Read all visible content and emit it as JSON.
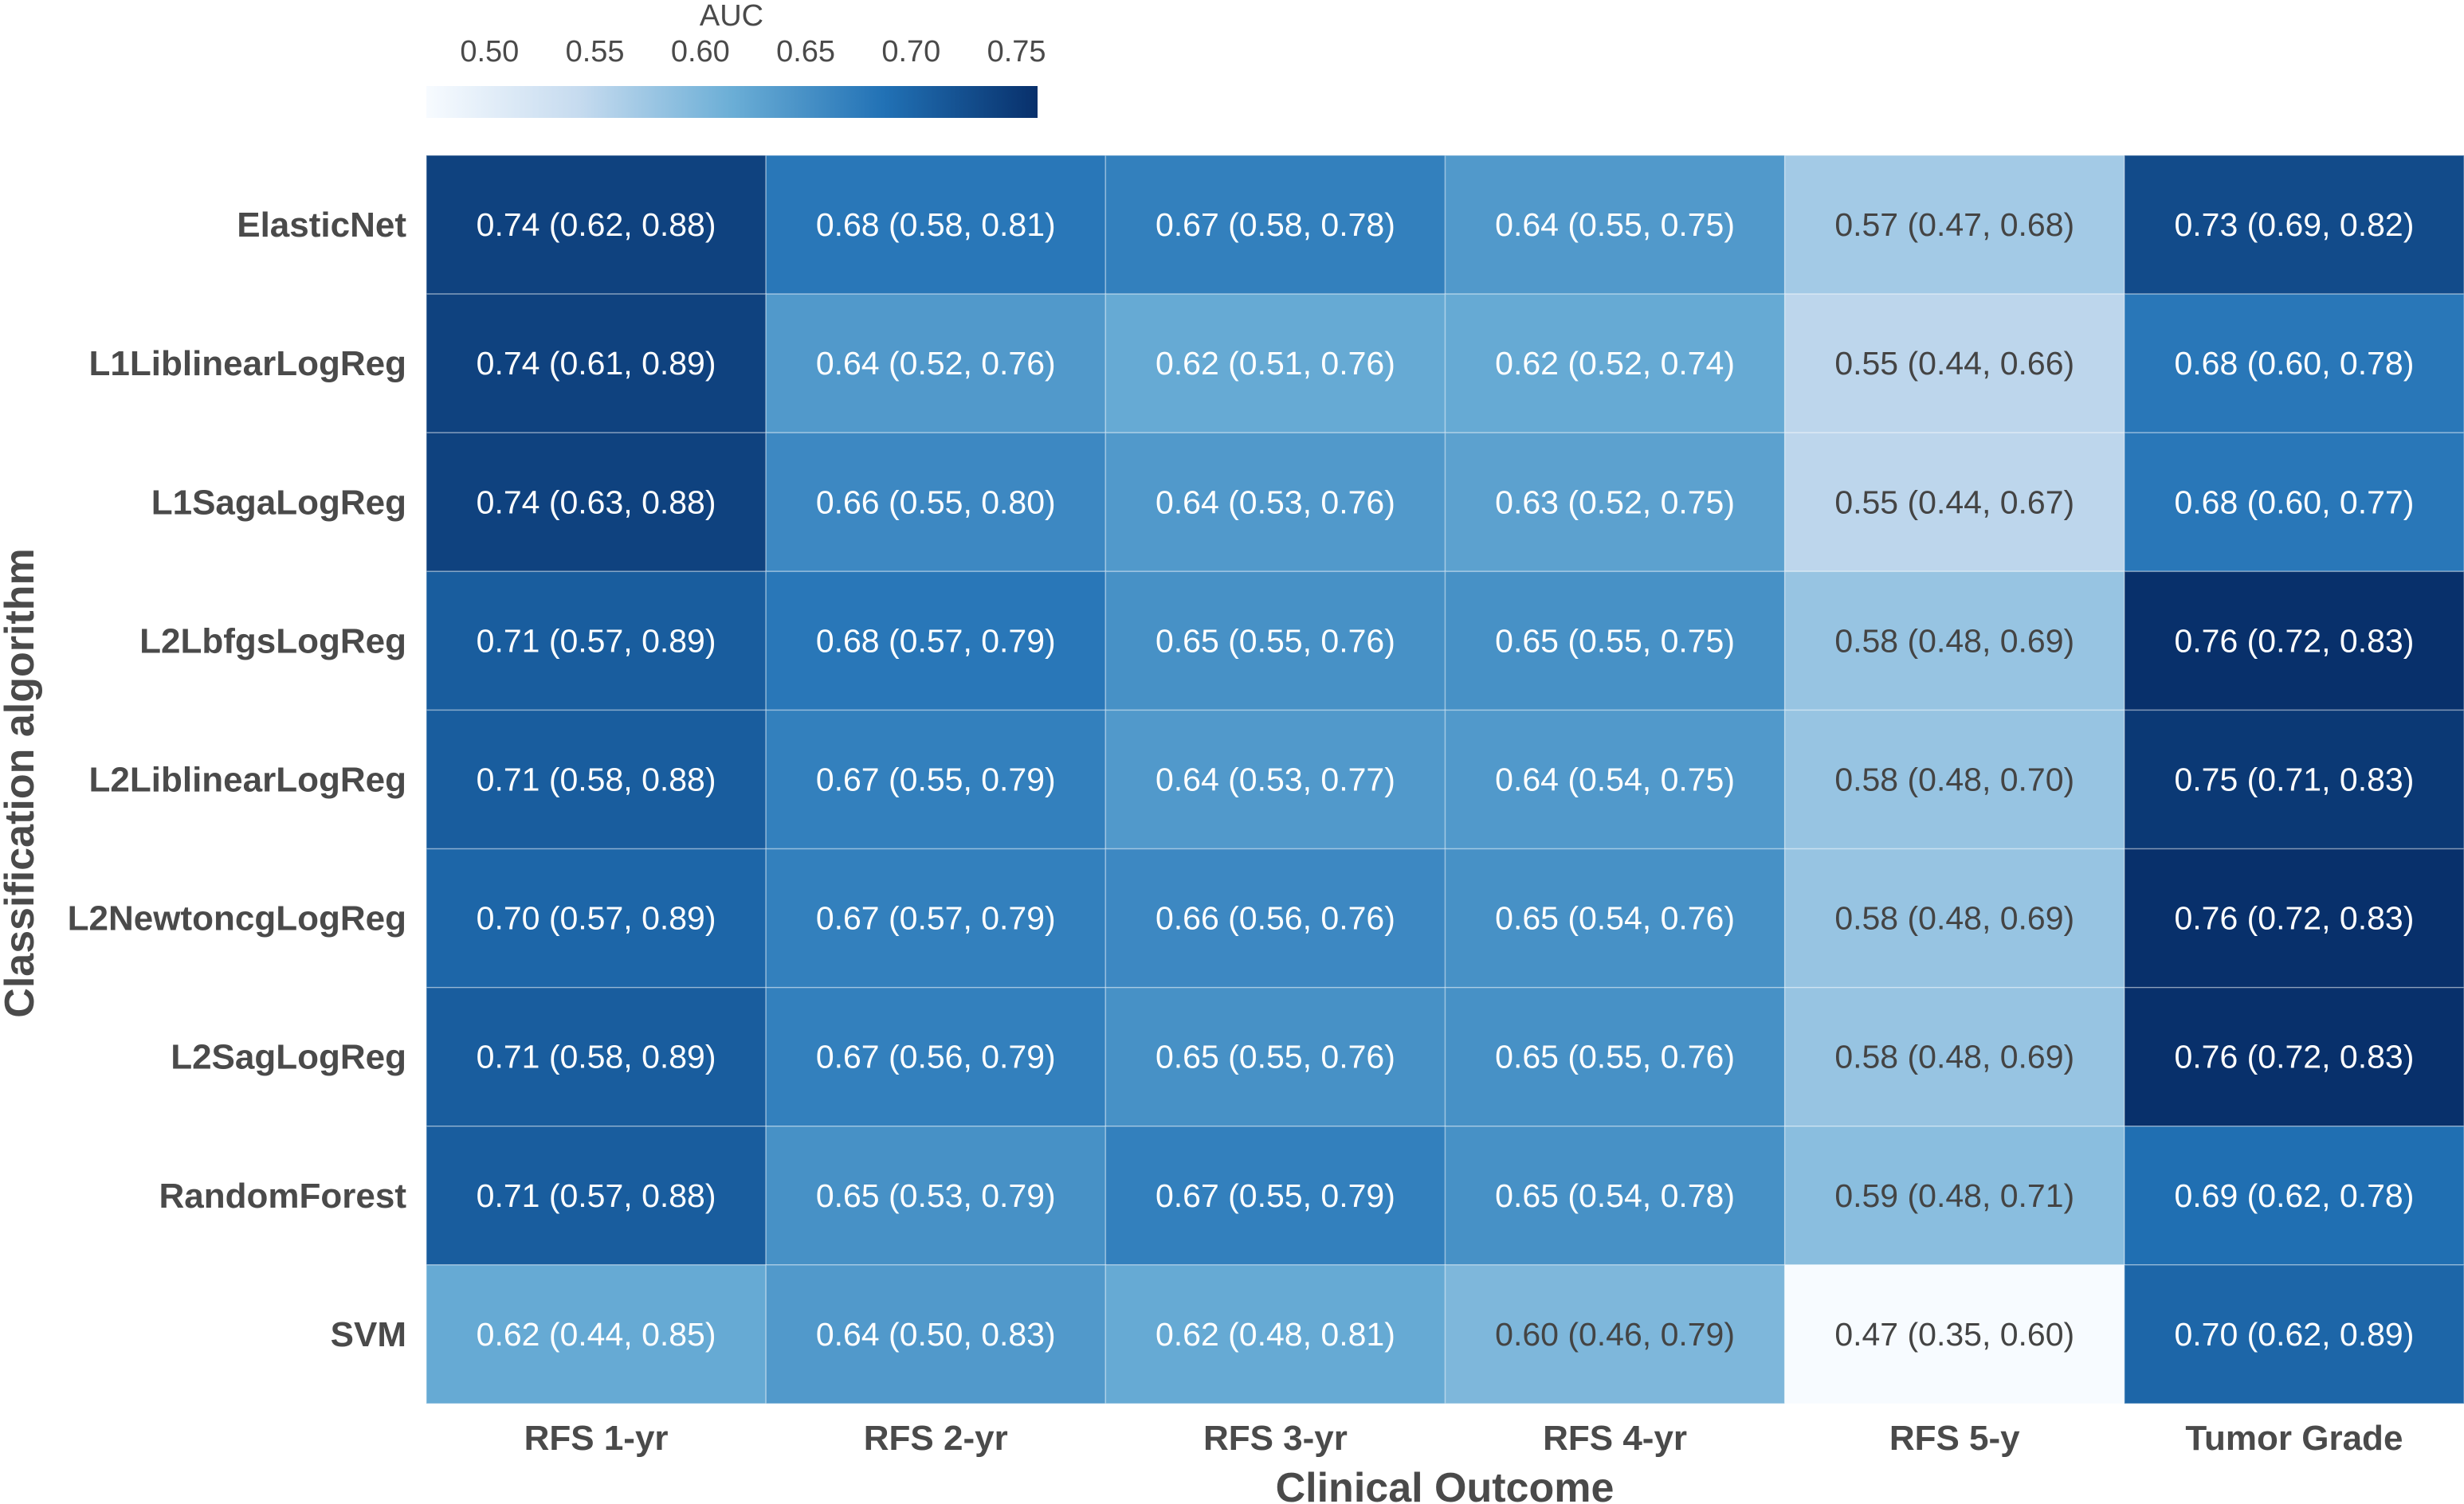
{
  "chart_data": {
    "type": "heatmap",
    "xlabel": "Clinical Outcome",
    "ylabel": "Classification algorithm",
    "colorbar": {
      "label": "AUC",
      "ticks": [
        "0.50",
        "0.55",
        "0.60",
        "0.65",
        "0.70",
        "0.75"
      ],
      "range": [
        0.47,
        0.76
      ],
      "colors": [
        "#f7fbff",
        "#c6dbef",
        "#6baed6",
        "#2171b5",
        "#08306b"
      ]
    },
    "columns": [
      "RFS 1-yr",
      "RFS 2-yr",
      "RFS 3-yr",
      "RFS 4-yr",
      "RFS 5-y",
      "Tumor Grade"
    ],
    "rows": [
      "ElasticNet",
      "L1LiblinearLogReg",
      "L1SagaLogReg",
      "L2LbfgsLogReg",
      "L2LiblinearLogReg",
      "L2NewtoncgLogReg",
      "L2SagLogReg",
      "RandomForest",
      "SVM"
    ],
    "values": [
      [
        0.74,
        0.68,
        0.67,
        0.64,
        0.57,
        0.73
      ],
      [
        0.74,
        0.64,
        0.62,
        0.62,
        0.55,
        0.68
      ],
      [
        0.74,
        0.66,
        0.64,
        0.63,
        0.55,
        0.68
      ],
      [
        0.71,
        0.68,
        0.65,
        0.65,
        0.58,
        0.76
      ],
      [
        0.71,
        0.67,
        0.64,
        0.64,
        0.58,
        0.75
      ],
      [
        0.7,
        0.67,
        0.66,
        0.65,
        0.58,
        0.76
      ],
      [
        0.71,
        0.67,
        0.65,
        0.65,
        0.58,
        0.76
      ],
      [
        0.71,
        0.65,
        0.67,
        0.65,
        0.59,
        0.69
      ],
      [
        0.62,
        0.64,
        0.62,
        0.6,
        0.47,
        0.7
      ]
    ],
    "labels": [
      [
        "0.74 (0.62, 0.88)",
        "0.68 (0.58, 0.81)",
        "0.67 (0.58, 0.78)",
        "0.64 (0.55, 0.75)",
        "0.57 (0.47, 0.68)",
        "0.73 (0.69, 0.82)"
      ],
      [
        "0.74 (0.61, 0.89)",
        "0.64 (0.52, 0.76)",
        "0.62 (0.51, 0.76)",
        "0.62 (0.52, 0.74)",
        "0.55 (0.44, 0.66)",
        "0.68 (0.60, 0.78)"
      ],
      [
        "0.74 (0.63, 0.88)",
        "0.66 (0.55, 0.80)",
        "0.64 (0.53, 0.76)",
        "0.63 (0.52, 0.75)",
        "0.55 (0.44, 0.67)",
        "0.68 (0.60, 0.77)"
      ],
      [
        "0.71 (0.57, 0.89)",
        "0.68 (0.57, 0.79)",
        "0.65 (0.55, 0.76)",
        "0.65 (0.55, 0.75)",
        "0.58 (0.48, 0.69)",
        "0.76 (0.72, 0.83)"
      ],
      [
        "0.71 (0.58, 0.88)",
        "0.67 (0.55, 0.79)",
        "0.64 (0.53, 0.77)",
        "0.64 (0.54, 0.75)",
        "0.58 (0.48, 0.70)",
        "0.75 (0.71, 0.83)"
      ],
      [
        "0.70 (0.57, 0.89)",
        "0.67 (0.57, 0.79)",
        "0.66 (0.56, 0.76)",
        "0.65 (0.54, 0.76)",
        "0.58 (0.48, 0.69)",
        "0.76 (0.72, 0.83)"
      ],
      [
        "0.71 (0.58, 0.89)",
        "0.67 (0.56, 0.79)",
        "0.65 (0.55, 0.76)",
        "0.65 (0.55, 0.76)",
        "0.58 (0.48, 0.69)",
        "0.76 (0.72, 0.83)"
      ],
      [
        "0.71 (0.57, 0.88)",
        "0.65 (0.53, 0.79)",
        "0.67 (0.55, 0.79)",
        "0.65 (0.54, 0.78)",
        "0.59 (0.48, 0.71)",
        "0.69 (0.62, 0.78)"
      ],
      [
        "0.62 (0.44, 0.85)",
        "0.64 (0.50, 0.83)",
        "0.62 (0.48, 0.81)",
        "0.60 (0.46, 0.79)",
        "0.47 (0.35, 0.60)",
        "0.70 (0.62, 0.89)"
      ]
    ],
    "text_colors": {
      "light": "#ffffff",
      "dark": "#444444",
      "threshold": 0.61
    },
    "grid_line_color": "#ffffff"
  }
}
